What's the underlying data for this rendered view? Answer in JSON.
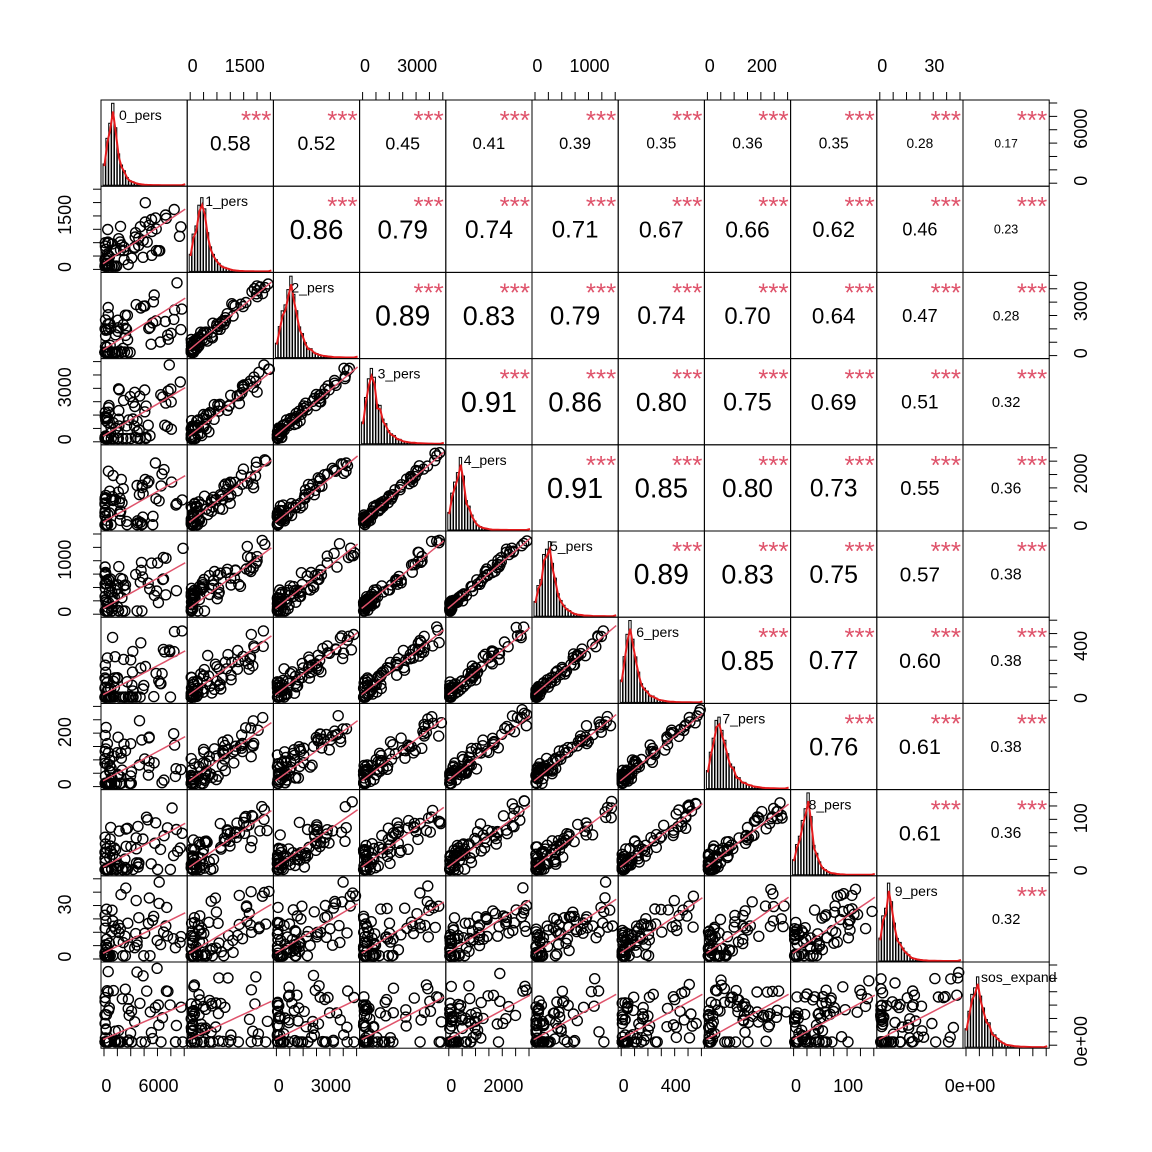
{
  "chart_data": {
    "type": "scatter",
    "title": "",
    "variables": [
      "0_pers",
      "1_pers",
      "2_pers",
      "3_pers",
      "4_pers",
      "5_pers",
      "6_pers",
      "7_pers",
      "8_pers",
      "9_pers",
      "sos_expand"
    ],
    "upper_stars": "***",
    "correlations": [
      [
        null,
        0.58,
        0.52,
        0.45,
        0.41,
        0.39,
        0.35,
        0.36,
        0.35,
        0.28,
        0.17
      ],
      [
        0.58,
        null,
        0.86,
        0.79,
        0.74,
        0.71,
        0.67,
        0.66,
        0.62,
        0.46,
        0.23
      ],
      [
        0.52,
        0.86,
        null,
        0.89,
        0.83,
        0.79,
        0.74,
        0.7,
        0.64,
        0.47,
        0.28
      ],
      [
        0.45,
        0.79,
        0.89,
        null,
        0.91,
        0.86,
        0.8,
        0.75,
        0.69,
        0.51,
        0.32
      ],
      [
        0.41,
        0.74,
        0.83,
        0.91,
        null,
        0.91,
        0.85,
        0.8,
        0.73,
        0.55,
        0.36
      ],
      [
        0.39,
        0.71,
        0.79,
        0.86,
        0.91,
        null,
        0.89,
        0.83,
        0.75,
        0.57,
        0.38
      ],
      [
        0.35,
        0.67,
        0.74,
        0.8,
        0.85,
        0.89,
        null,
        0.85,
        0.77,
        0.6,
        0.38
      ],
      [
        0.36,
        0.66,
        0.7,
        0.75,
        0.8,
        0.83,
        0.85,
        null,
        0.76,
        0.61,
        0.38
      ],
      [
        0.35,
        0.62,
        0.64,
        0.69,
        0.73,
        0.75,
        0.77,
        0.76,
        null,
        0.61,
        0.36
      ],
      [
        0.28,
        0.46,
        0.47,
        0.51,
        0.55,
        0.57,
        0.6,
        0.61,
        0.61,
        null,
        0.32
      ],
      [
        0.17,
        0.23,
        0.28,
        0.32,
        0.36,
        0.38,
        0.38,
        0.38,
        0.36,
        0.32,
        null
      ]
    ],
    "correlation_labels": [
      [
        null,
        "0.58",
        "0.52",
        "0.45",
        "0.41",
        "0.39",
        "0.35",
        "0.36",
        "0.35",
        "0.28",
        "0.17"
      ],
      [
        null,
        null,
        "0.86",
        "0.79",
        "0.74",
        "0.71",
        "0.67",
        "0.66",
        "0.62",
        "0.46",
        "0.23"
      ],
      [
        null,
        null,
        null,
        "0.89",
        "0.83",
        "0.79",
        "0.74",
        "0.70",
        "0.64",
        "0.47",
        "0.28"
      ],
      [
        null,
        null,
        null,
        null,
        "0.91",
        "0.86",
        "0.80",
        "0.75",
        "0.69",
        "0.51",
        "0.32"
      ],
      [
        null,
        null,
        null,
        null,
        null,
        "0.91",
        "0.85",
        "0.80",
        "0.73",
        "0.55",
        "0.36"
      ],
      [
        null,
        null,
        null,
        null,
        null,
        null,
        "0.89",
        "0.83",
        "0.75",
        "0.57",
        "0.38"
      ],
      [
        null,
        null,
        null,
        null,
        null,
        null,
        null,
        "0.85",
        "0.77",
        "0.60",
        "0.38"
      ],
      [
        null,
        null,
        null,
        null,
        null,
        null,
        null,
        null,
        "0.76",
        "0.61",
        "0.38"
      ],
      [
        null,
        null,
        null,
        null,
        null,
        null,
        null,
        null,
        null,
        "0.61",
        "0.36"
      ],
      [
        null,
        null,
        null,
        null,
        null,
        null,
        null,
        null,
        null,
        null,
        "0.32"
      ],
      [
        null,
        null,
        null,
        null,
        null,
        null,
        null,
        null,
        null,
        null,
        null
      ]
    ],
    "axes": {
      "top_labels": [
        null,
        [
          "0",
          "1500"
        ],
        null,
        [
          "0",
          "3000"
        ],
        null,
        [
          "0",
          "1000"
        ],
        null,
        [
          "0",
          "200"
        ],
        null,
        [
          "0",
          "30"
        ],
        null
      ],
      "bottom_labels": [
        [
          "0",
          "6000"
        ],
        null,
        [
          "0",
          "3000"
        ],
        null,
        [
          "0",
          "2000"
        ],
        null,
        [
          "0",
          "400"
        ],
        null,
        [
          "0",
          "100"
        ],
        null,
        [
          "0e+00"
        ]
      ],
      "left_labels": [
        null,
        [
          "0",
          "1500"
        ],
        null,
        [
          "0",
          "3000"
        ],
        null,
        [
          "0",
          "1000"
        ],
        null,
        [
          "0",
          "200"
        ],
        null,
        [
          "0",
          "30"
        ],
        null
      ],
      "right_labels": [
        [
          "0",
          "6000"
        ],
        null,
        [
          "0",
          "3000"
        ],
        null,
        [
          "0",
          "2000"
        ],
        null,
        [
          "0",
          "400"
        ],
        null,
        [
          "0",
          "100"
        ],
        null,
        [
          "0e+00"
        ]
      ]
    },
    "colors": {
      "stars": "#DF536B",
      "smooth_line": "#DF536B",
      "density": "#E41A1C",
      "points": "#000000",
      "bars": "#000000"
    }
  }
}
